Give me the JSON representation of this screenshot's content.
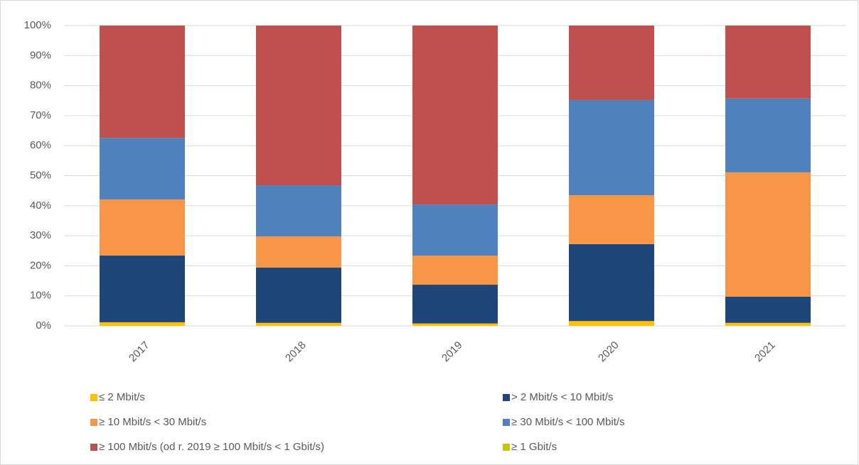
{
  "chart_data": {
    "type": "stacked_bar",
    "categories": [
      "2017",
      "2018",
      "2019",
      "2020",
      "2021"
    ],
    "series": [
      {
        "name": "≤  2 Mbit/s",
        "color": "#ffc000",
        "values": [
          1.2,
          1.0,
          0.8,
          1.6,
          1.0
        ]
      },
      {
        "name": "> 2 Mbit/s < 10 Mbit/s",
        "color": "#1f4679",
        "values": [
          22.2,
          18.4,
          12.9,
          25.6,
          8.7
        ]
      },
      {
        "name": "≥ 10 Mbit/s < 30 Mbit/s",
        "color": "#f79646",
        "values": [
          18.7,
          10.4,
          9.7,
          16.3,
          41.4
        ]
      },
      {
        "name": "≥ 30 Mbit/s < 100 Mbit/s",
        "color": "#4f81bd",
        "values": [
          20.5,
          17.0,
          17.0,
          31.7,
          24.6
        ]
      },
      {
        "name": "≥ 100 Mbit/s (od r. 2019 ≥ 100 Mbit/s < 1 Gbit/s)",
        "color": "#c0504d",
        "values": [
          37.4,
          53.2,
          59.6,
          24.8,
          24.3
        ]
      },
      {
        "name": "≥ 1 Gbit/s",
        "color": "#c8c800",
        "values": [
          0,
          0,
          0,
          0,
          0
        ]
      }
    ],
    "ylim": [
      0,
      100
    ],
    "yticks": [
      {
        "value": 0,
        "label": "0%"
      },
      {
        "value": 10,
        "label": "10%"
      },
      {
        "value": 20,
        "label": "20%"
      },
      {
        "value": 30,
        "label": "30%"
      },
      {
        "value": 40,
        "label": "40%"
      },
      {
        "value": 50,
        "label": "50%"
      },
      {
        "value": 60,
        "label": "60%"
      },
      {
        "value": 70,
        "label": "70%"
      },
      {
        "value": 80,
        "label": "80%"
      },
      {
        "value": 90,
        "label": "90%"
      },
      {
        "value": 100,
        "label": "100%"
      }
    ],
    "grid": true
  }
}
